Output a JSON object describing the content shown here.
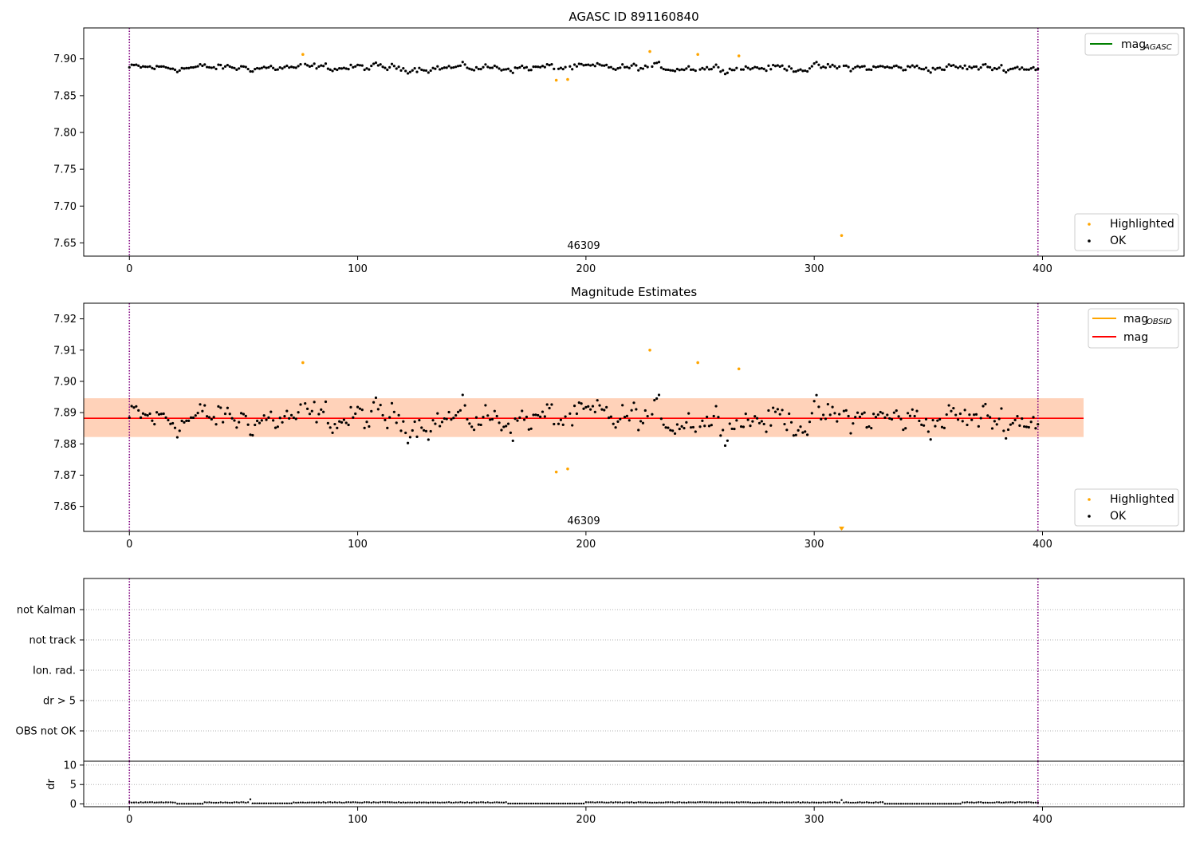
{
  "chart_data": [
    {
      "type": "scatter",
      "title": "AGASC ID 891160840",
      "xlabel": "",
      "ylabel": "",
      "xlim": [
        -20,
        462
      ],
      "ylim": [
        7.632,
        7.942
      ],
      "xticks": [
        "0",
        "100",
        "200",
        "300",
        "400"
      ],
      "yticks": [
        "7.65",
        "7.70",
        "7.75",
        "7.80",
        "7.85",
        "7.90"
      ],
      "obsid_label": "46309",
      "obsid_boundaries": [
        0,
        398
      ],
      "lines": [
        {
          "name": "mag_AGASC",
          "label_main": "mag",
          "label_sub": "AGASC",
          "color": "#008000"
        }
      ],
      "markers": [
        {
          "name": "Highlighted",
          "color": "#ffa500"
        },
        {
          "name": "OK",
          "color": "#000000"
        }
      ],
      "series": [
        {
          "name": "OK",
          "color": "#000000",
          "baseline": 7.888,
          "sd": 0.0055
        },
        {
          "name": "Highlighted",
          "color": "#ffa500",
          "x": [
            76,
            187,
            192,
            228,
            249,
            267,
            312
          ],
          "y": [
            7.906,
            7.871,
            7.872,
            7.91,
            7.906,
            7.904,
            7.66
          ]
        }
      ]
    },
    {
      "type": "scatter",
      "title": "Magnitude Estimates",
      "xlabel": "",
      "ylabel": "",
      "xlim": [
        -20,
        462
      ],
      "ylim": [
        7.852,
        7.925
      ],
      "xticks": [
        "0",
        "100",
        "200",
        "300",
        "400"
      ],
      "yticks": [
        "7.86",
        "7.87",
        "7.88",
        "7.89",
        "7.90",
        "7.91",
        "7.92"
      ],
      "obsid_label": "46309",
      "obsid_boundaries": [
        0,
        398
      ],
      "mag": {
        "value": 7.8882,
        "band_low": 7.8822,
        "band_high": 7.8946,
        "x_end": 418
      },
      "lines": [
        {
          "name": "mag_OBSID",
          "label_main": "mag",
          "label_sub": "OBSID",
          "color": "#ffa500"
        },
        {
          "name": "mag",
          "label_main": "mag",
          "label_sub": "",
          "color": "#ff0000"
        }
      ],
      "markers": [
        {
          "name": "Highlighted",
          "color": "#ffa500"
        },
        {
          "name": "OK",
          "color": "#000000"
        }
      ],
      "series": [
        {
          "name": "OK",
          "color": "#000000",
          "baseline": 7.888,
          "sd": 0.0055
        },
        {
          "name": "Highlighted",
          "color": "#ffa500",
          "x": [
            76,
            187,
            192,
            228,
            249,
            267,
            312
          ],
          "y": [
            7.906,
            7.871,
            7.872,
            7.91,
            7.906,
            7.904,
            7.853
          ]
        }
      ]
    },
    {
      "type": "scatter",
      "title": "",
      "flags": [
        "not Kalman",
        "not track",
        "Ion. rad.",
        "dr > 5",
        "OBS not OK"
      ],
      "xlim": [
        -20,
        462
      ],
      "obsid_boundaries": [
        0,
        398
      ]
    },
    {
      "type": "scatter",
      "title": "",
      "ylabel": "dr",
      "xlim": [
        -20,
        462
      ],
      "ylim": [
        -0.7,
        11
      ],
      "xticks": [
        "0",
        "100",
        "200",
        "300",
        "400"
      ],
      "yticks": [
        "0",
        "5",
        "10"
      ],
      "obsid_boundaries": [
        0,
        398
      ],
      "series": [
        {
          "name": "dr",
          "color": "#000000",
          "typical": 0.4,
          "spikes": [
            {
              "x": 53,
              "y": 1.2
            },
            {
              "x": 312,
              "y": 1.0
            }
          ]
        }
      ]
    }
  ]
}
